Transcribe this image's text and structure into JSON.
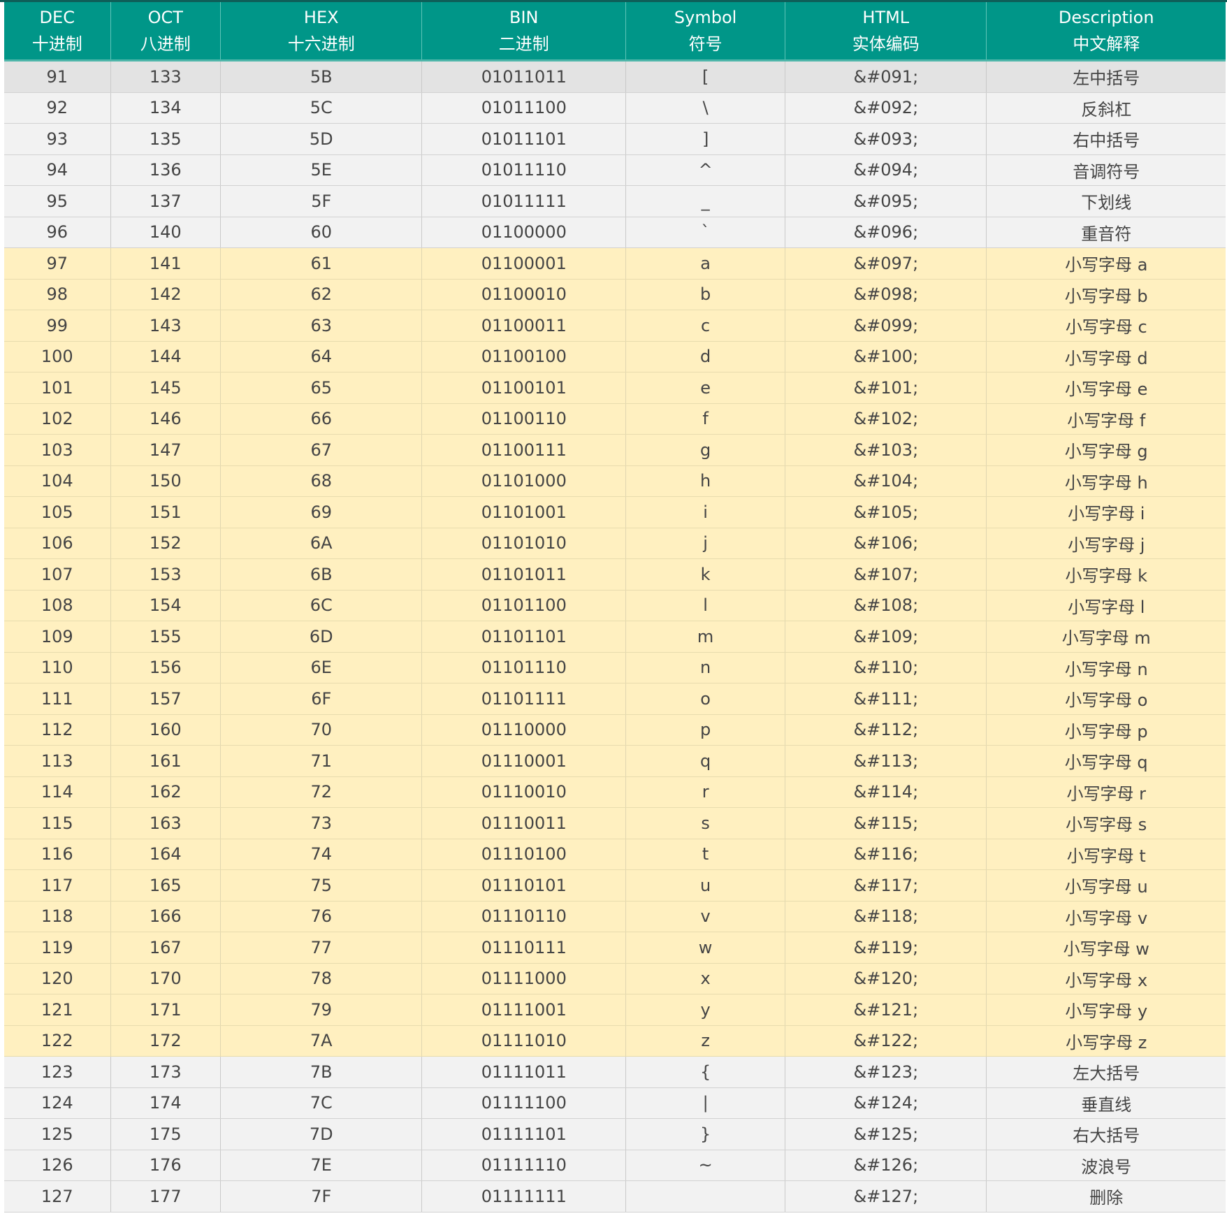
{
  "headers": [
    {
      "en": "DEC",
      "zh": "十进制"
    },
    {
      "en": "OCT",
      "zh": "八进制"
    },
    {
      "en": "HEX",
      "zh": "十六进制"
    },
    {
      "en": "BIN",
      "zh": "二进制"
    },
    {
      "en": "Symbol",
      "zh": "符号"
    },
    {
      "en": "HTML",
      "zh": "实体编码"
    },
    {
      "en": "Description",
      "zh": "中文解释"
    }
  ],
  "colors": {
    "header_bg": "#009688",
    "row_gray": "#f2f2f2",
    "row_yellow": "#fff0c0",
    "row_highlight": "#e3e3e3"
  },
  "rows": [
    {
      "style": "hl",
      "cells": [
        "91",
        "133",
        "5B",
        "01011011",
        "[",
        "&#091;",
        "左中括号"
      ]
    },
    {
      "style": "gray",
      "cells": [
        "92",
        "134",
        "5C",
        "01011100",
        "\\",
        "&#092;",
        "反斜杠"
      ]
    },
    {
      "style": "gray",
      "cells": [
        "93",
        "135",
        "5D",
        "01011101",
        "]",
        "&#093;",
        "右中括号"
      ]
    },
    {
      "style": "gray",
      "cells": [
        "94",
        "136",
        "5E",
        "01011110",
        "^",
        "&#094;",
        "音调符号"
      ]
    },
    {
      "style": "gray",
      "cells": [
        "95",
        "137",
        "5F",
        "01011111",
        "_",
        "&#095;",
        "下划线"
      ]
    },
    {
      "style": "gray",
      "cells": [
        "96",
        "140",
        "60",
        "01100000",
        "`",
        "&#096;",
        "重音符"
      ]
    },
    {
      "style": "yellow",
      "cells": [
        "97",
        "141",
        "61",
        "01100001",
        "a",
        "&#097;",
        "小写字母 a"
      ]
    },
    {
      "style": "yellow",
      "cells": [
        "98",
        "142",
        "62",
        "01100010",
        "b",
        "&#098;",
        "小写字母 b"
      ]
    },
    {
      "style": "yellow",
      "cells": [
        "99",
        "143",
        "63",
        "01100011",
        "c",
        "&#099;",
        "小写字母 c"
      ]
    },
    {
      "style": "yellow",
      "cells": [
        "100",
        "144",
        "64",
        "01100100",
        "d",
        "&#100;",
        "小写字母 d"
      ]
    },
    {
      "style": "yellow",
      "cells": [
        "101",
        "145",
        "65",
        "01100101",
        "e",
        "&#101;",
        "小写字母 e"
      ]
    },
    {
      "style": "yellow",
      "cells": [
        "102",
        "146",
        "66",
        "01100110",
        "f",
        "&#102;",
        "小写字母 f"
      ]
    },
    {
      "style": "yellow",
      "cells": [
        "103",
        "147",
        "67",
        "01100111",
        "g",
        "&#103;",
        "小写字母 g"
      ]
    },
    {
      "style": "yellow",
      "cells": [
        "104",
        "150",
        "68",
        "01101000",
        "h",
        "&#104;",
        "小写字母 h"
      ]
    },
    {
      "style": "yellow",
      "cells": [
        "105",
        "151",
        "69",
        "01101001",
        "i",
        "&#105;",
        "小写字母 i"
      ]
    },
    {
      "style": "yellow",
      "cells": [
        "106",
        "152",
        "6A",
        "01101010",
        "j",
        "&#106;",
        "小写字母 j"
      ]
    },
    {
      "style": "yellow",
      "cells": [
        "107",
        "153",
        "6B",
        "01101011",
        "k",
        "&#107;",
        "小写字母 k"
      ]
    },
    {
      "style": "yellow",
      "cells": [
        "108",
        "154",
        "6C",
        "01101100",
        "l",
        "&#108;",
        "小写字母 l"
      ]
    },
    {
      "style": "yellow",
      "cells": [
        "109",
        "155",
        "6D",
        "01101101",
        "m",
        "&#109;",
        "小写字母 m"
      ]
    },
    {
      "style": "yellow",
      "cells": [
        "110",
        "156",
        "6E",
        "01101110",
        "n",
        "&#110;",
        "小写字母 n"
      ]
    },
    {
      "style": "yellow",
      "cells": [
        "111",
        "157",
        "6F",
        "01101111",
        "o",
        "&#111;",
        "小写字母 o"
      ]
    },
    {
      "style": "yellow",
      "cells": [
        "112",
        "160",
        "70",
        "01110000",
        "p",
        "&#112;",
        "小写字母 p"
      ]
    },
    {
      "style": "yellow",
      "cells": [
        "113",
        "161",
        "71",
        "01110001",
        "q",
        "&#113;",
        "小写字母 q"
      ]
    },
    {
      "style": "yellow",
      "cells": [
        "114",
        "162",
        "72",
        "01110010",
        "r",
        "&#114;",
        "小写字母 r"
      ]
    },
    {
      "style": "yellow",
      "cells": [
        "115",
        "163",
        "73",
        "01110011",
        "s",
        "&#115;",
        "小写字母 s"
      ]
    },
    {
      "style": "yellow",
      "cells": [
        "116",
        "164",
        "74",
        "01110100",
        "t",
        "&#116;",
        "小写字母 t"
      ]
    },
    {
      "style": "yellow",
      "cells": [
        "117",
        "165",
        "75",
        "01110101",
        "u",
        "&#117;",
        "小写字母 u"
      ]
    },
    {
      "style": "yellow",
      "cells": [
        "118",
        "166",
        "76",
        "01110110",
        "v",
        "&#118;",
        "小写字母 v"
      ]
    },
    {
      "style": "yellow",
      "cells": [
        "119",
        "167",
        "77",
        "01110111",
        "w",
        "&#119;",
        "小写字母 w"
      ]
    },
    {
      "style": "yellow",
      "cells": [
        "120",
        "170",
        "78",
        "01111000",
        "x",
        "&#120;",
        "小写字母 x"
      ]
    },
    {
      "style": "yellow",
      "cells": [
        "121",
        "171",
        "79",
        "01111001",
        "y",
        "&#121;",
        "小写字母 y"
      ]
    },
    {
      "style": "yellow",
      "cells": [
        "122",
        "172",
        "7A",
        "01111010",
        "z",
        "&#122;",
        "小写字母 z"
      ]
    },
    {
      "style": "gray",
      "cells": [
        "123",
        "173",
        "7B",
        "01111011",
        "{",
        "&#123;",
        "左大括号"
      ]
    },
    {
      "style": "gray",
      "cells": [
        "124",
        "174",
        "7C",
        "01111100",
        "|",
        "&#124;",
        "垂直线"
      ]
    },
    {
      "style": "gray",
      "cells": [
        "125",
        "175",
        "7D",
        "01111101",
        "}",
        "&#125;",
        "右大括号"
      ]
    },
    {
      "style": "gray",
      "cells": [
        "126",
        "176",
        "7E",
        "01111110",
        "~",
        "&#126;",
        "波浪号"
      ]
    },
    {
      "style": "gray",
      "cells": [
        "127",
        "177",
        "7F",
        "01111111",
        "",
        "&#127;",
        "删除"
      ]
    }
  ]
}
